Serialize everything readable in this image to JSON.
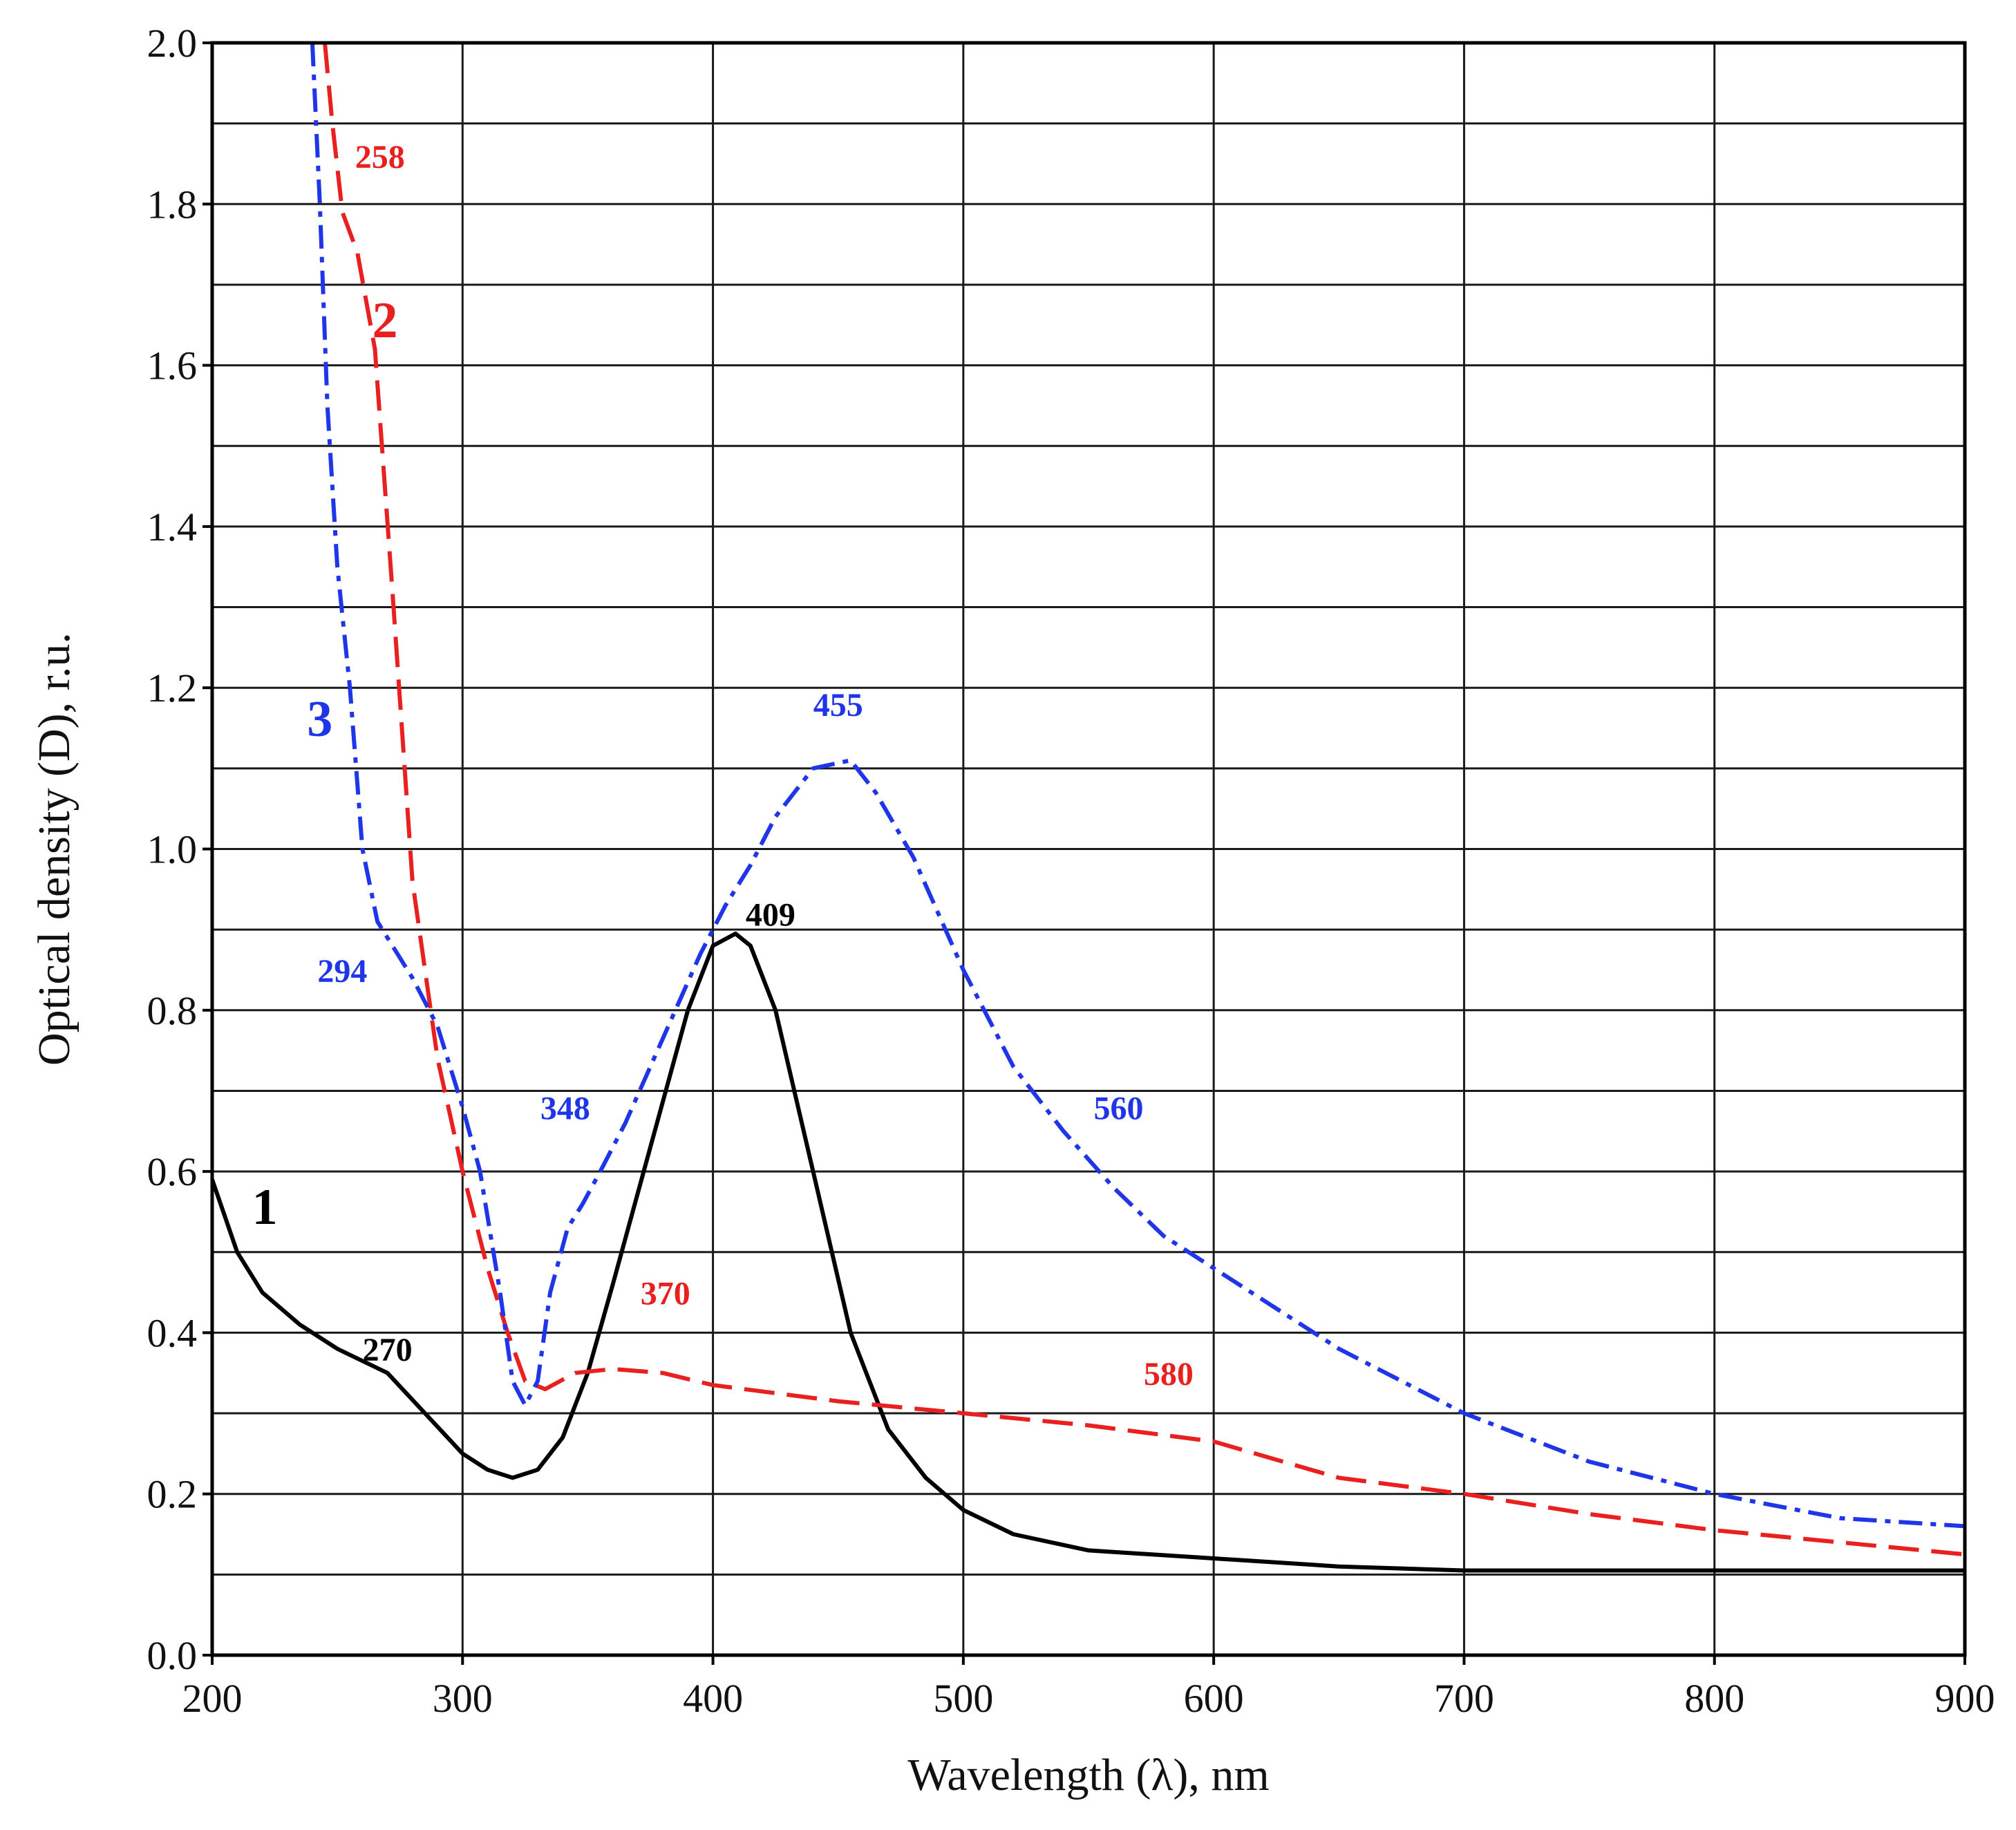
{
  "chart_data": {
    "type": "line",
    "title": "",
    "xlabel": "Wavelength (λ), nm",
    "ylabel": "Optical density (D), r.u.",
    "xlim": [
      200,
      900
    ],
    "ylim": [
      0.0,
      2.0
    ],
    "grid": true,
    "x_ticks": [
      "200",
      "300",
      "400",
      "500",
      "600",
      "700",
      "800",
      "900"
    ],
    "y_ticks": [
      "0.0",
      "0.2",
      "0.4",
      "0.6",
      "0.8",
      "1.0",
      "1.2",
      "1.4",
      "1.6",
      "1.8",
      "2.0"
    ],
    "series": [
      {
        "name": "1",
        "color": "#000000",
        "style": "solid",
        "x": [
          200,
          210,
          220,
          235,
          250,
          270,
          285,
          300,
          310,
          320,
          330,
          340,
          350,
          360,
          375,
          390,
          400,
          409,
          415,
          425,
          440,
          455,
          470,
          485,
          500,
          520,
          550,
          600,
          650,
          700,
          800,
          900
        ],
        "y": [
          0.59,
          0.5,
          0.45,
          0.41,
          0.38,
          0.35,
          0.3,
          0.25,
          0.23,
          0.22,
          0.23,
          0.27,
          0.35,
          0.46,
          0.63,
          0.8,
          0.88,
          0.895,
          0.88,
          0.8,
          0.6,
          0.4,
          0.28,
          0.22,
          0.18,
          0.15,
          0.13,
          0.12,
          0.11,
          0.105,
          0.105,
          0.105
        ]
      },
      {
        "name": "2",
        "color": "#e8201f",
        "style": "dashed",
        "x": [
          245,
          248,
          252,
          258,
          265,
          272,
          280,
          290,
          300,
          310,
          318,
          325,
          333,
          345,
          360,
          380,
          400,
          450,
          500,
          550,
          600,
          650,
          700,
          750,
          800,
          850,
          900
        ],
        "y": [
          2.0,
          1.9,
          1.79,
          1.74,
          1.62,
          1.32,
          0.96,
          0.74,
          0.6,
          0.48,
          0.4,
          0.34,
          0.33,
          0.35,
          0.355,
          0.35,
          0.335,
          0.315,
          0.3,
          0.285,
          0.265,
          0.22,
          0.2,
          0.175,
          0.155,
          0.14,
          0.125
        ]
      },
      {
        "name": "3",
        "color": "#1f35e8",
        "style": "dashdot",
        "x": [
          240,
          243,
          246,
          250,
          255,
          260,
          266,
          272,
          280,
          290,
          300,
          307,
          315,
          320,
          325,
          330,
          335,
          342,
          348,
          355,
          365,
          375,
          385,
          395,
          405,
          415,
          425,
          440,
          455,
          465,
          480,
          500,
          520,
          540,
          560,
          580,
          600,
          650,
          700,
          750,
          800,
          850,
          900
        ],
        "y": [
          2.0,
          1.8,
          1.55,
          1.35,
          1.2,
          1.0,
          0.91,
          0.88,
          0.84,
          0.78,
          0.68,
          0.6,
          0.45,
          0.34,
          0.31,
          0.34,
          0.45,
          0.53,
          0.56,
          0.6,
          0.66,
          0.73,
          0.8,
          0.87,
          0.93,
          0.98,
          1.04,
          1.1,
          1.11,
          1.07,
          0.99,
          0.85,
          0.73,
          0.65,
          0.58,
          0.52,
          0.48,
          0.38,
          0.3,
          0.24,
          0.2,
          0.17,
          0.16
        ]
      }
    ],
    "peak_labels": [
      {
        "text": "270",
        "series": "1",
        "x": 270,
        "y": 0.365
      },
      {
        "text": "409",
        "series": "1",
        "x": 423,
        "y": 0.905
      },
      {
        "text": "258",
        "series": "2",
        "x": 267,
        "y": 1.845
      },
      {
        "text": "370",
        "series": "2",
        "x": 381,
        "y": 0.435
      },
      {
        "text": "580",
        "series": "2",
        "x": 582,
        "y": 0.335
      },
      {
        "text": "294",
        "series": "3",
        "x": 252,
        "y": 0.835
      },
      {
        "text": "348",
        "series": "3",
        "x": 341,
        "y": 0.665
      },
      {
        "text": "455",
        "series": "3",
        "x": 450,
        "y": 1.165
      },
      {
        "text": "560",
        "series": "3",
        "x": 562,
        "y": 0.665
      }
    ],
    "curve_labels": [
      {
        "text": "1",
        "series": "1",
        "x": 221,
        "y": 0.535
      },
      {
        "text": "2",
        "series": "2",
        "x": 269,
        "y": 1.635
      },
      {
        "text": "3",
        "series": "3",
        "x": 243,
        "y": 1.14
      }
    ]
  }
}
